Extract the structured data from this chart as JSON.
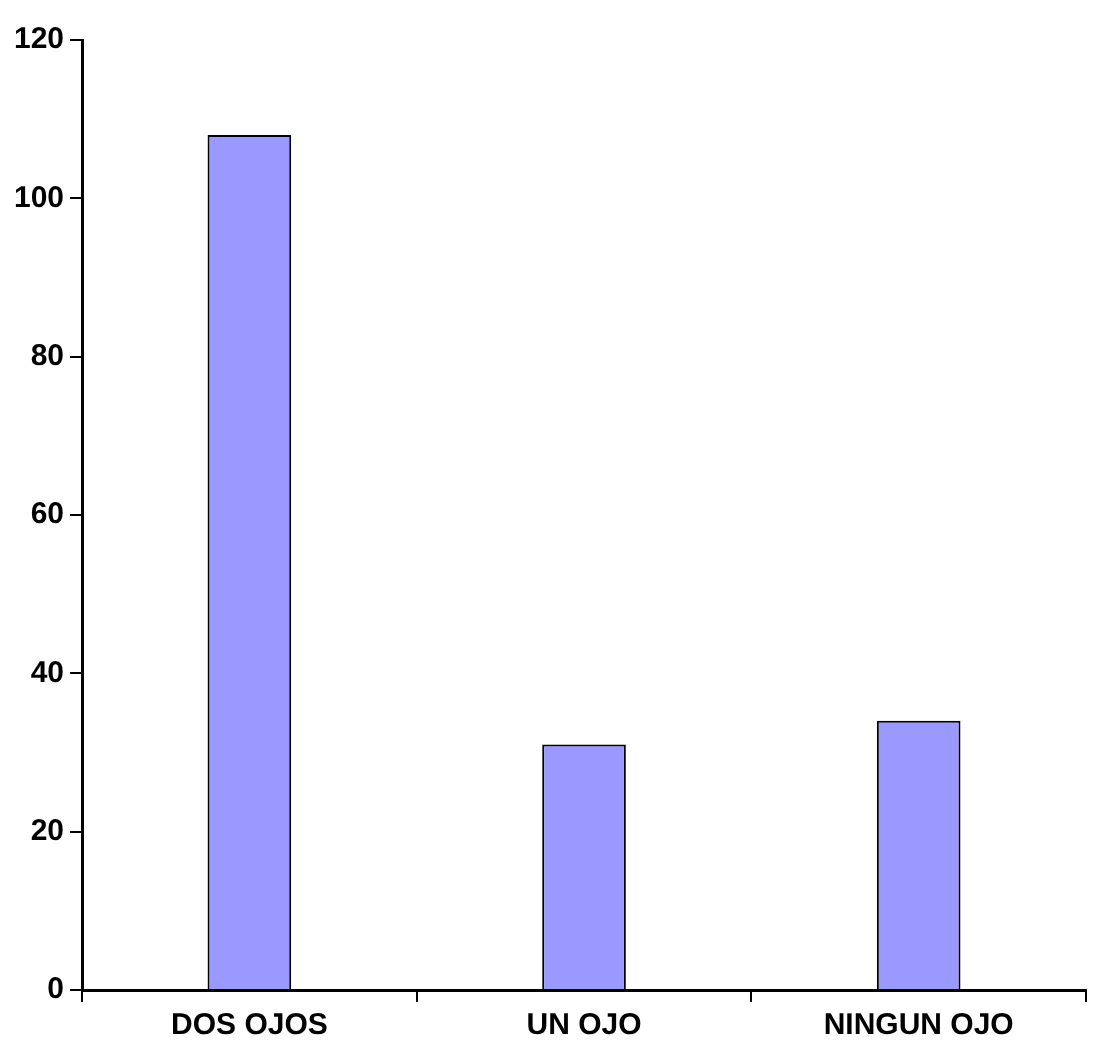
{
  "chart_data": {
    "type": "bar",
    "categories": [
      "DOS OJOS",
      "UN OJO",
      "NINGUN OJO"
    ],
    "values": [
      108,
      31,
      34
    ],
    "color": "#9999ff",
    "ylim": [
      0,
      120
    ],
    "yticks": [
      0,
      20,
      40,
      60,
      80,
      100,
      120
    ],
    "grid": false,
    "legend": false
  }
}
